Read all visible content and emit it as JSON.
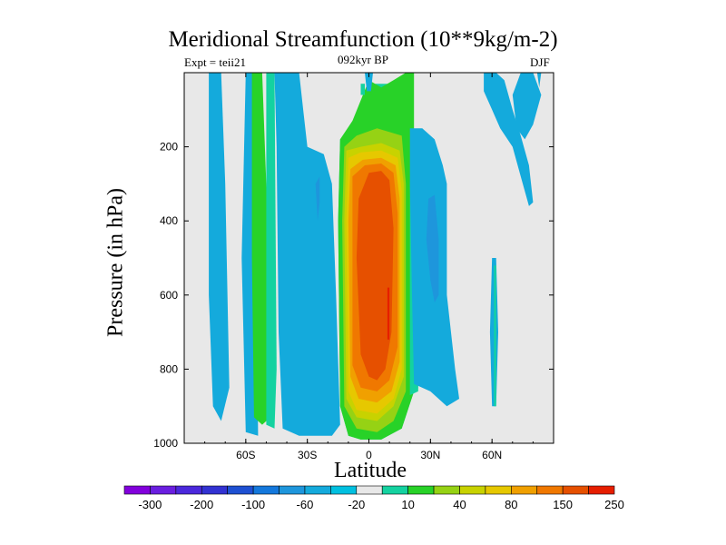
{
  "title": "Meridional Streamfunction (10**9kg/m-2)",
  "left_subtitle": "Expt = teii21",
  "center_subtitle": "092kyr BP",
  "right_subtitle": "DJF",
  "chart_data": {
    "type": "heatmap",
    "title": "Meridional Streamfunction (10**9kg/m-2)",
    "xlabel": "Latitude",
    "ylabel": "Pressure (in hPa)",
    "xlim": [
      -90,
      90
    ],
    "ylim": [
      1000,
      0
    ],
    "x_ticks": [
      {
        "value": -60,
        "label": "60S"
      },
      {
        "value": -30,
        "label": "30S"
      },
      {
        "value": 0,
        "label": "0"
      },
      {
        "value": 30,
        "label": "30N"
      },
      {
        "value": 60,
        "label": "60N"
      }
    ],
    "y_ticks": [
      {
        "value": 200,
        "label": "200"
      },
      {
        "value": 400,
        "label": "400"
      },
      {
        "value": 600,
        "label": "600"
      },
      {
        "value": 800,
        "label": "800"
      },
      {
        "value": 1000,
        "label": "1000"
      }
    ],
    "colorbar": {
      "labels": [
        "-300",
        "-200",
        "-100",
        "-60",
        "-20",
        "10",
        "40",
        "80",
        "150",
        "250"
      ],
      "colors": [
        "#8200dc",
        "#6a1ee0",
        "#4b28dc",
        "#3232d2",
        "#1e50d2",
        "#1478dc",
        "#1e96dc",
        "#14aadc",
        "#00c0e0",
        "#e8e8e8",
        "#14d2a0",
        "#28d228",
        "#96d214",
        "#c8d200",
        "#e6c800",
        "#f0a000",
        "#f07800",
        "#e65000",
        "#e61e00"
      ]
    },
    "regions": [
      {
        "level": -20,
        "color": "#14aadc",
        "points": [
          [
            -78,
            0
          ],
          [
            -72,
            0
          ],
          [
            -70,
            300
          ],
          [
            -68,
            850
          ],
          [
            -72,
            940
          ],
          [
            -76,
            900
          ],
          [
            -78,
            600
          ]
        ]
      },
      {
        "level": -20,
        "color": "#14aadc",
        "points": [
          [
            -60,
            0
          ],
          [
            -56,
            0
          ],
          [
            -55,
            400
          ],
          [
            -54,
            980
          ],
          [
            -60,
            970
          ],
          [
            -62,
            500
          ]
        ]
      },
      {
        "level": 40,
        "color": "#28d228",
        "points": [
          [
            -57,
            0
          ],
          [
            -52,
            0
          ],
          [
            -50,
            300
          ],
          [
            -48,
            800
          ],
          [
            -48,
            930
          ],
          [
            -52,
            950
          ],
          [
            -56,
            930
          ],
          [
            -57,
            500
          ]
        ]
      },
      {
        "level": 10,
        "color": "#14d2a0",
        "points": [
          [
            -50,
            0
          ],
          [
            -46,
            0
          ],
          [
            -45,
            800
          ],
          [
            -46,
            960
          ],
          [
            -50,
            950
          ]
        ]
      },
      {
        "level": -20,
        "color": "#14aadc",
        "points": [
          [
            -46,
            0
          ],
          [
            -34,
            0
          ],
          [
            -32,
            100
          ],
          [
            -30,
            200
          ],
          [
            -22,
            220
          ],
          [
            -18,
            300
          ],
          [
            -16,
            600
          ],
          [
            -14,
            950
          ],
          [
            -18,
            980
          ],
          [
            -34,
            980
          ],
          [
            -42,
            960
          ],
          [
            -44,
            700
          ],
          [
            -45,
            200
          ]
        ]
      },
      {
        "level": -60,
        "color": "#1e96dc",
        "points": [
          [
            -26,
            300
          ],
          [
            -24,
            280
          ],
          [
            -24,
            350
          ],
          [
            -25,
            400
          ]
        ]
      },
      {
        "level": 10,
        "color": "#14d2a0",
        "points": [
          [
            -14,
            180
          ],
          [
            -8,
            150
          ],
          [
            -2,
            120
          ],
          [
            0,
            30
          ],
          [
            10,
            30
          ],
          [
            20,
            0
          ],
          [
            22,
            200
          ],
          [
            22,
            860
          ],
          [
            16,
            960
          ],
          [
            6,
            990
          ],
          [
            -4,
            990
          ],
          [
            -10,
            980
          ],
          [
            -14,
            900
          ],
          [
            -15,
            400
          ]
        ]
      },
      {
        "level": 40,
        "color": "#28d228",
        "points": [
          [
            -14,
            180
          ],
          [
            -8,
            130
          ],
          [
            0,
            20
          ],
          [
            6,
            40
          ],
          [
            12,
            20
          ],
          [
            18,
            0
          ],
          [
            22,
            0
          ],
          [
            22,
            860
          ],
          [
            16,
            960
          ],
          [
            6,
            990
          ],
          [
            -4,
            990
          ],
          [
            -10,
            980
          ],
          [
            -14,
            900
          ],
          [
            -15,
            400
          ]
        ]
      },
      {
        "level": 80,
        "color": "#96d214",
        "points": [
          [
            -12,
            200
          ],
          [
            -6,
            170
          ],
          [
            4,
            150
          ],
          [
            16,
            170
          ],
          [
            18,
            300
          ],
          [
            18,
            860
          ],
          [
            12,
            940
          ],
          [
            4,
            970
          ],
          [
            -6,
            960
          ],
          [
            -12,
            900
          ],
          [
            -13,
            400
          ]
        ]
      },
      {
        "level": 100,
        "color": "#c8d200",
        "points": [
          [
            -11,
            210
          ],
          [
            -4,
            200
          ],
          [
            6,
            190
          ],
          [
            15,
            210
          ],
          [
            17,
            300
          ],
          [
            17,
            820
          ],
          [
            12,
            900
          ],
          [
            4,
            940
          ],
          [
            -6,
            930
          ],
          [
            -11,
            880
          ],
          [
            -12,
            400
          ]
        ]
      },
      {
        "level": 120,
        "color": "#e6c800",
        "points": [
          [
            -10,
            230
          ],
          [
            -4,
            215
          ],
          [
            6,
            210
          ],
          [
            14,
            230
          ],
          [
            16,
            320
          ],
          [
            16,
            800
          ],
          [
            12,
            880
          ],
          [
            4,
            920
          ],
          [
            -6,
            910
          ],
          [
            -10,
            860
          ],
          [
            -11,
            400
          ]
        ]
      },
      {
        "level": 150,
        "color": "#f0a000",
        "points": [
          [
            -9,
            260
          ],
          [
            -3,
            235
          ],
          [
            6,
            230
          ],
          [
            13,
            250
          ],
          [
            15,
            340
          ],
          [
            15,
            780
          ],
          [
            11,
            860
          ],
          [
            4,
            890
          ],
          [
            -5,
            880
          ],
          [
            -9,
            820
          ],
          [
            -10,
            400
          ]
        ]
      },
      {
        "level": 200,
        "color": "#f07800",
        "points": [
          [
            -8,
            280
          ],
          [
            -2,
            250
          ],
          [
            6,
            245
          ],
          [
            12,
            270
          ],
          [
            14,
            380
          ],
          [
            14,
            740
          ],
          [
            10,
            830
          ],
          [
            4,
            860
          ],
          [
            -4,
            850
          ],
          [
            -8,
            790
          ],
          [
            -8,
            400
          ]
        ]
      },
      {
        "level": 250,
        "color": "#e65000",
        "points": [
          [
            -5,
            340
          ],
          [
            0,
            270
          ],
          [
            6,
            265
          ],
          [
            10,
            290
          ],
          [
            12,
            420
          ],
          [
            11,
            700
          ],
          [
            8,
            800
          ],
          [
            4,
            830
          ],
          [
            0,
            820
          ],
          [
            -4,
            760
          ],
          [
            -6,
            500
          ]
        ]
      },
      {
        "level": 300,
        "color": "#e61e00",
        "points": [
          [
            9,
            580
          ],
          [
            10,
            580
          ],
          [
            10,
            720
          ],
          [
            9,
            720
          ]
        ]
      },
      {
        "level": 10,
        "color": "#14d2a0",
        "points": [
          [
            -4,
            30
          ],
          [
            -2,
            30
          ],
          [
            -2,
            60
          ],
          [
            -4,
            60
          ]
        ]
      },
      {
        "level": -20,
        "color": "#14aadc",
        "points": [
          [
            -2,
            0
          ],
          [
            2,
            0
          ],
          [
            1,
            50
          ],
          [
            -1,
            50
          ]
        ]
      },
      {
        "level": 10,
        "color": "#14d2a0",
        "points": [
          [
            22,
            150
          ],
          [
            20,
            300
          ],
          [
            20,
            600
          ],
          [
            20,
            870
          ],
          [
            24,
            860
          ],
          [
            26,
            300
          ]
        ]
      },
      {
        "level": -20,
        "color": "#14aadc",
        "points": [
          [
            20,
            150
          ],
          [
            26,
            150
          ],
          [
            32,
            180
          ],
          [
            36,
            250
          ],
          [
            38,
            300
          ],
          [
            38,
            600
          ],
          [
            42,
            800
          ],
          [
            44,
            880
          ],
          [
            38,
            900
          ],
          [
            30,
            860
          ],
          [
            22,
            840
          ],
          [
            21,
            600
          ],
          [
            20,
            300
          ]
        ]
      },
      {
        "level": -60,
        "color": "#1e96dc",
        "points": [
          [
            29,
            340
          ],
          [
            32,
            330
          ],
          [
            34,
            450
          ],
          [
            34,
            600
          ],
          [
            32,
            620
          ],
          [
            30,
            560
          ],
          [
            28,
            450
          ]
        ]
      },
      {
        "level": -20,
        "color": "#14aadc",
        "points": [
          [
            56,
            0
          ],
          [
            62,
            0
          ],
          [
            66,
            20
          ],
          [
            70,
            100
          ],
          [
            74,
            170
          ],
          [
            78,
            250
          ],
          [
            80,
            350
          ],
          [
            78,
            360
          ],
          [
            74,
            280
          ],
          [
            70,
            200
          ],
          [
            64,
            150
          ],
          [
            60,
            100
          ],
          [
            56,
            50
          ]
        ]
      },
      {
        "level": -20,
        "color": "#14aadc",
        "points": [
          [
            74,
            0
          ],
          [
            80,
            0
          ],
          [
            82,
            30
          ],
          [
            84,
            60
          ],
          [
            80,
            140
          ],
          [
            76,
            180
          ],
          [
            72,
            150
          ],
          [
            70,
            60
          ]
        ]
      },
      {
        "level": -20,
        "color": "#14aadc",
        "points": [
          [
            82,
            0
          ],
          [
            84,
            0
          ],
          [
            83,
            40
          ]
        ]
      },
      {
        "level": -20,
        "color": "#14aadc",
        "points": [
          [
            60,
            500
          ],
          [
            62,
            500
          ],
          [
            63,
            700
          ],
          [
            62,
            900
          ],
          [
            60,
            900
          ],
          [
            59,
            700
          ]
        ]
      },
      {
        "level": 10,
        "color": "#14d2a0",
        "points": [
          [
            61,
            520
          ],
          [
            62,
            520
          ],
          [
            62,
            900
          ],
          [
            61,
            900
          ]
        ]
      }
    ]
  }
}
